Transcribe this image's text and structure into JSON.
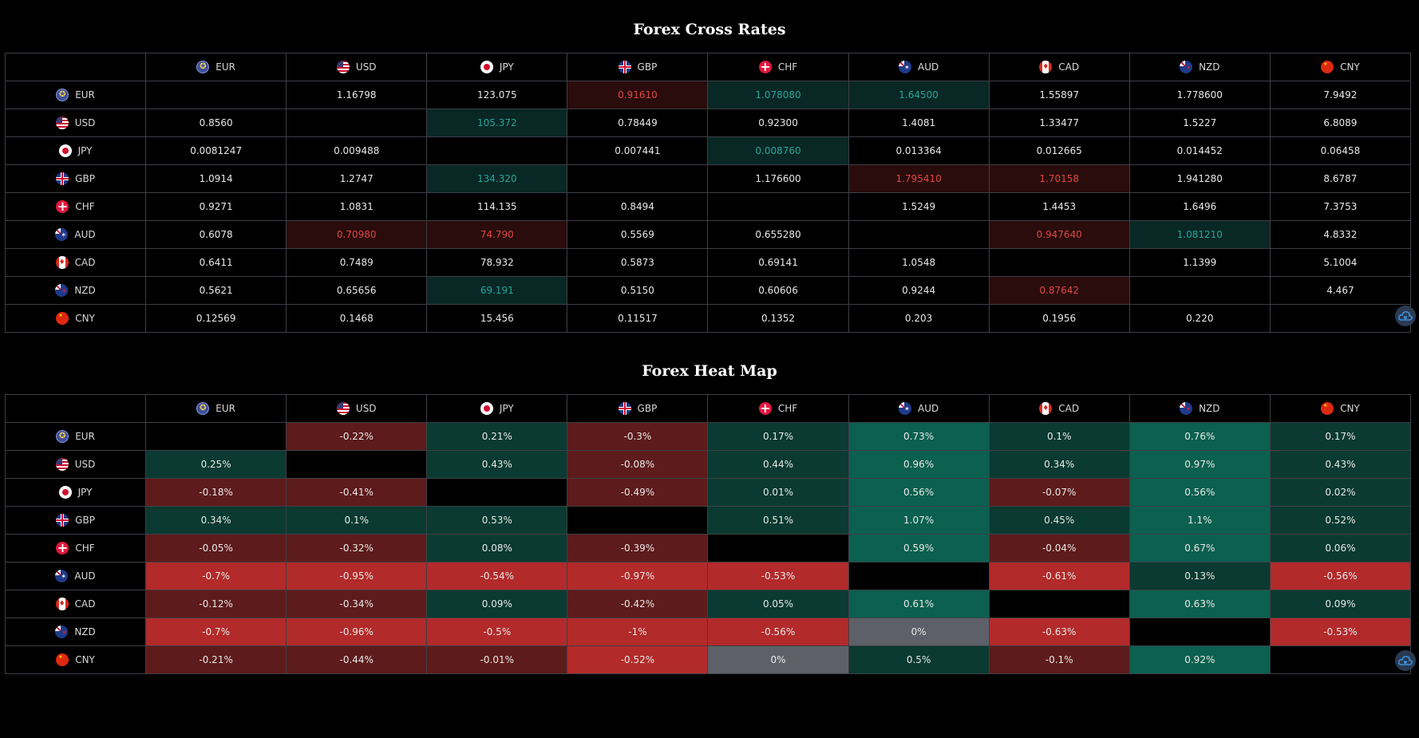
{
  "cross_rates": {
    "title": "Forex Cross Rates",
    "currencies": [
      {
        "code": "EUR",
        "flag": "eu-flag"
      },
      {
        "code": "USD",
        "flag": "us-flag"
      },
      {
        "code": "JPY",
        "flag": "jp-flag"
      },
      {
        "code": "GBP",
        "flag": "gb-flag"
      },
      {
        "code": "CHF",
        "flag": "ch-flag"
      },
      {
        "code": "AUD",
        "flag": "au-flag"
      },
      {
        "code": "CAD",
        "flag": "ca-flag"
      },
      {
        "code": "NZD",
        "flag": "nz-flag"
      },
      {
        "code": "CNY",
        "flag": "cn-flag"
      }
    ],
    "rows": [
      [
        "",
        "1.16798",
        "123.075",
        "0.91610",
        "1.078080",
        "1.64500",
        "1.55897",
        "1.778600",
        "7.9492"
      ],
      [
        "0.8560",
        "",
        "105.372",
        "0.78449",
        "0.92300",
        "1.4081",
        "1.33477",
        "1.5227",
        "6.8089"
      ],
      [
        "0.0081247",
        "0.009488",
        "",
        "0.007441",
        "0.008760",
        "0.013364",
        "0.012665",
        "0.014452",
        "0.06458"
      ],
      [
        "1.0914",
        "1.2747",
        "134.320",
        "",
        "1.176600",
        "1.795410",
        "1.70158",
        "1.941280",
        "8.6787"
      ],
      [
        "0.9271",
        "1.0831",
        "114.135",
        "0.8494",
        "",
        "1.5249",
        "1.4453",
        "1.6496",
        "7.3753"
      ],
      [
        "0.6078",
        "0.70980",
        "74.790",
        "0.5569",
        "0.655280",
        "",
        "0.947640",
        "1.081210",
        "4.8332"
      ],
      [
        "0.6411",
        "0.7489",
        "78.932",
        "0.5873",
        "0.69141",
        "1.0548",
        "",
        "1.1399",
        "5.1004"
      ],
      [
        "0.5621",
        "0.65656",
        "69.191",
        "0.5150",
        "0.60606",
        "0.9244",
        "0.87642",
        "",
        "4.467"
      ],
      [
        "0.12569",
        "0.1468",
        "15.456",
        "0.11517",
        "0.1352",
        "0.203",
        "0.1956",
        "0.220",
        ""
      ]
    ],
    "highlights": [
      [
        "",
        "",
        "",
        "down",
        "up",
        "up",
        "",
        "",
        ""
      ],
      [
        "",
        "",
        "up",
        "",
        "",
        "",
        "",
        "",
        ""
      ],
      [
        "",
        "",
        "",
        "",
        "up",
        "",
        "",
        "",
        ""
      ],
      [
        "",
        "",
        "up",
        "",
        "",
        "down",
        "down",
        "",
        ""
      ],
      [
        "",
        "",
        "",
        "",
        "",
        "",
        "",
        "",
        ""
      ],
      [
        "",
        "down",
        "down",
        "",
        "",
        "",
        "down",
        "up",
        ""
      ],
      [
        "",
        "",
        "",
        "",
        "",
        "",
        "",
        "",
        ""
      ],
      [
        "",
        "",
        "up",
        "",
        "",
        "",
        "down",
        "",
        ""
      ],
      [
        "",
        "",
        "",
        "",
        "",
        "",
        "",
        "",
        ""
      ]
    ]
  },
  "heat_map": {
    "title": "Forex Heat Map",
    "rows": [
      [
        "",
        "-0.22%",
        "0.21%",
        "-0.3%",
        "0.17%",
        "0.73%",
        "0.1%",
        "0.76%",
        "0.17%"
      ],
      [
        "0.25%",
        "",
        "0.43%",
        "-0.08%",
        "0.44%",
        "0.96%",
        "0.34%",
        "0.97%",
        "0.43%"
      ],
      [
        "-0.18%",
        "-0.41%",
        "",
        "-0.49%",
        "0.01%",
        "0.56%",
        "-0.07%",
        "0.56%",
        "0.02%"
      ],
      [
        "0.34%",
        "0.1%",
        "0.53%",
        "",
        "0.51%",
        "1.07%",
        "0.45%",
        "1.1%",
        "0.52%"
      ],
      [
        "-0.05%",
        "-0.32%",
        "0.08%",
        "-0.39%",
        "",
        "0.59%",
        "-0.04%",
        "0.67%",
        "0.06%"
      ],
      [
        "-0.7%",
        "-0.95%",
        "-0.54%",
        "-0.97%",
        "-0.53%",
        "",
        "-0.61%",
        "0.13%",
        "-0.56%"
      ],
      [
        "-0.12%",
        "-0.34%",
        "0.09%",
        "-0.42%",
        "0.05%",
        "0.61%",
        "",
        "0.63%",
        "0.09%"
      ],
      [
        "-0.7%",
        "-0.96%",
        "-0.5%",
        "-1%",
        "-0.56%",
        "0%",
        "-0.63%",
        "",
        "-0.53%"
      ],
      [
        "-0.21%",
        "-0.44%",
        "-0.01%",
        "-0.52%",
        "0%",
        "0.5%",
        "-0.1%",
        "0.92%",
        ""
      ]
    ],
    "colors": {
      "strong_red": "#b22a2a",
      "weak_red": "#5e1b1b",
      "weak_green": "#0a3a31",
      "strong_green": "#0b6050",
      "neutral": "#5d6068",
      "empty": "#000000"
    }
  },
  "settings_icon": "cloud-settings-icon"
}
